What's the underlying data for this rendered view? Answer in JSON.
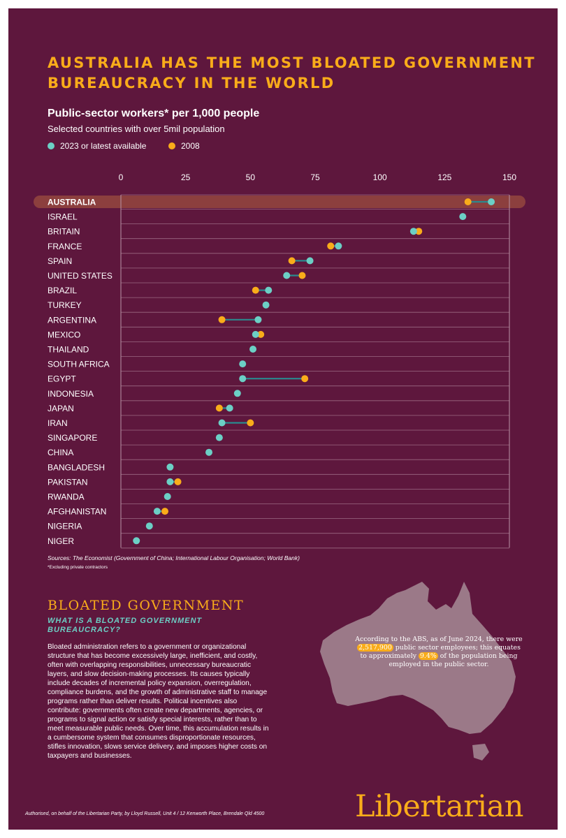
{
  "headline": "AUSTRALIA HAS THE MOST BLOATED GOVERNMENT BUREAUCRACY IN THE WORLD",
  "colors": {
    "background": "#5e173d",
    "accent": "#f9ac1a",
    "teal": "#6ccfc5",
    "connector": "#2a8a8e",
    "highlight_band": "#8c3f3e"
  },
  "chart_data": {
    "type": "dumbbell",
    "title": "Public-sector workers* per 1,000 people",
    "subtitle": "Selected countries with over 5mil population",
    "xlim": [
      0,
      150
    ],
    "xticks": [
      0,
      25,
      50,
      75,
      100,
      125,
      150
    ],
    "grid": true,
    "legend": "top-left",
    "highlighted": "AUSTRALIA",
    "series": [
      {
        "name": "2023 or latest available",
        "color": "#6ccfc5",
        "values": [
          143,
          132,
          113,
          84,
          73,
          64,
          57,
          56,
          53,
          52,
          51,
          47,
          47,
          45,
          42,
          39,
          38,
          34,
          19,
          19,
          18,
          14,
          11,
          6
        ]
      },
      {
        "name": "2008",
        "color": "#f9ac1a",
        "values": [
          134,
          null,
          115,
          81,
          66,
          70,
          52,
          null,
          39,
          54,
          null,
          null,
          71,
          null,
          38,
          50,
          null,
          null,
          null,
          22,
          null,
          17,
          null,
          null
        ]
      }
    ],
    "categories": [
      "AUSTRALIA",
      "ISRAEL",
      "BRITAIN",
      "FRANCE",
      "SPAIN",
      "UNITED STATES",
      "BRAZIL",
      "TURKEY",
      "ARGENTINA",
      "MEXICO",
      "THAILAND",
      "SOUTH AFRICA",
      "EGYPT",
      "INDONESIA",
      "JAPAN",
      "IRAN",
      "SINGAPORE",
      "CHINA",
      "BANGLADESH",
      "PAKISTAN",
      "RWANDA",
      "AFGHANISTAN",
      "NIGERIA",
      "NIGER"
    ],
    "sources": "Sources: The Economist (Government of China; International Labour Organisation; World Bank)",
    "footnote": "*Excluding private contractors"
  },
  "section": {
    "heading": "BLOATED GOVERNMENT",
    "subheading": "WHAT IS A BLOATED GOVERNMENT BUREAUCRACY?",
    "body": "Bloated administration refers to a government or organizational structure that has become excessively large, inefficient, and costly, often with overlapping responsibilities, unnecessary bureaucratic layers, and slow decision-making processes. Its causes typically include decades of incremental policy expansion, overregulation, compliance burdens, and the growth of administrative staff to manage programs rather than deliver results. Political incentives also contribute: governments often create new departments, agencies, or programs to signal action or satisfy special interests, rather than to meet measurable public needs. Over time, this accumulation results in a cumbersome system that consumes disproportionate resources, stifles innovation, slows service delivery, and imposes higher costs on taxpayers and businesses."
  },
  "map_note": {
    "before": "According to the ABS, as of June 2024, there were ",
    "highlight1": "2,517,900",
    "middle": " public sector employees; this equates to approximately ",
    "highlight2": "9.4%",
    "after": " of the population being employed in the public sector."
  },
  "authorised": "Authorised, on behalf of the Libertarian Party, by Lloyd Russell, Unit 4 / 12 Kenworth Place, Brendale Qld 4500",
  "logo": "Libertarian"
}
